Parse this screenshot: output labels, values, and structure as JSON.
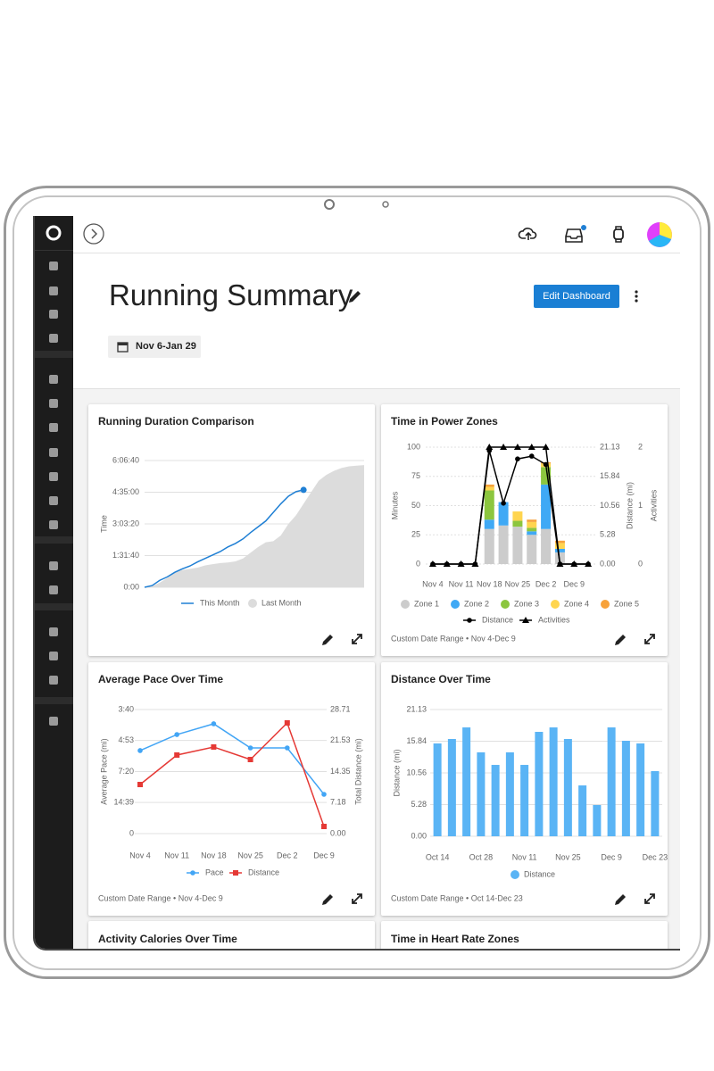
{
  "header": {
    "title": "Running Summary",
    "edit_button": "Edit Dashboard",
    "date_range": "Nov 6-Jan 29"
  },
  "chart_data": [
    {
      "type": "area",
      "title": "Running Duration Comparison",
      "y_label": "Time",
      "categories": [
        null,
        null,
        null,
        null,
        null,
        null,
        null,
        null,
        null,
        null,
        null,
        null,
        null,
        null,
        null,
        null,
        null,
        null,
        null,
        null,
        null,
        null,
        null,
        null,
        null,
        null,
        null,
        null,
        null,
        null
      ],
      "series": [
        {
          "name": "This Month",
          "color": "#1f7fd4",
          "style": "line",
          "marker": "end",
          "values": [
            0,
            300,
            1200,
            1800,
            2600,
            3200,
            3700,
            4400,
            5000,
            5600,
            6200,
            7000,
            7600,
            8400,
            9500,
            10500,
            11500,
            13000,
            14500,
            15800,
            16600,
            16900,
            null,
            null,
            null,
            null,
            null,
            null,
            null,
            null
          ]
        },
        {
          "name": "Last Month",
          "color": "#dcdcdc",
          "style": "area",
          "values": [
            0,
            200,
            800,
            1600,
            2600,
            3000,
            3200,
            3400,
            3800,
            4000,
            4200,
            4300,
            4500,
            5000,
            6000,
            7000,
            7800,
            8000,
            9000,
            11000,
            12500,
            14500,
            16500,
            18500,
            19500,
            20200,
            20700,
            21000,
            21100,
            21200
          ]
        }
      ],
      "ylim": [
        0,
        22000
      ],
      "yticks": [
        {
          "value": 0,
          "label": "0:00"
        },
        {
          "value": 5500,
          "label": "1:31:40"
        },
        {
          "value": 11000,
          "label": "3:03:20"
        },
        {
          "value": 16500,
          "label": "4:35:00"
        },
        {
          "value": 22000,
          "label": "6:06:40"
        }
      ],
      "grid": true
    },
    {
      "type": "stacked-bar-line",
      "title": "Time in Power Zones",
      "y_label": "Minutes",
      "y2_label": "Distance (mi)",
      "y3_label": "Activities",
      "categories": [
        "Nov 4",
        null,
        "Nov 11",
        null,
        "Nov 18",
        null,
        "Nov 25",
        null,
        "Dec 2",
        null,
        "Dec 9",
        null
      ],
      "series": [
        {
          "name": "Zone 1",
          "color": "#cccccc",
          "style": "bar",
          "axis": "y",
          "values": [
            0,
            0,
            0,
            0,
            30,
            33,
            32,
            25,
            30,
            10,
            0,
            0
          ]
        },
        {
          "name": "Zone 2",
          "color": "#3fa9f5",
          "style": "bar",
          "axis": "y",
          "values": [
            0,
            0,
            0,
            0,
            8,
            20,
            0,
            3,
            38,
            3,
            0,
            0
          ]
        },
        {
          "name": "Zone 3",
          "color": "#8cc63f",
          "style": "bar",
          "axis": "y",
          "values": [
            0,
            0,
            0,
            0,
            25,
            0,
            5,
            3,
            15,
            0,
            0,
            0
          ]
        },
        {
          "name": "Zone 4",
          "color": "#ffd54f",
          "style": "bar",
          "axis": "y",
          "values": [
            0,
            0,
            0,
            0,
            3,
            0,
            8,
            5,
            3,
            5,
            0,
            0
          ]
        },
        {
          "name": "Zone 5",
          "color": "#f7a23b",
          "style": "bar",
          "axis": "y",
          "values": [
            0,
            0,
            0,
            0,
            2,
            0,
            0,
            2,
            1,
            2,
            0,
            0
          ]
        },
        {
          "name": "Distance",
          "color": "#000000",
          "style": "line",
          "marker": "circle",
          "axis": "y2",
          "values": [
            0,
            0,
            0,
            0,
            20.5,
            11,
            19,
            19.5,
            18,
            0,
            0,
            0
          ]
        },
        {
          "name": "Activities",
          "color": "#000000",
          "style": "line",
          "marker": "triangle",
          "axis": "y3",
          "values": [
            0,
            0,
            0,
            0,
            2,
            2,
            2,
            2,
            2,
            0,
            0,
            0
          ]
        }
      ],
      "ylim": [
        0,
        100
      ],
      "yticks": [
        0,
        25,
        50,
        75,
        100
      ],
      "y2lim": [
        0,
        21.13
      ],
      "y2ticks": [
        {
          "value": 0,
          "label": "0.00"
        },
        5.28,
        10.56,
        15.84,
        21.13
      ],
      "y3lim": [
        0,
        2
      ],
      "y3ticks": [
        0,
        1,
        2
      ],
      "grid": true,
      "footer": "Custom Date Range  •  Nov 4-Dec 9"
    },
    {
      "type": "line",
      "title": "Average Pace Over Time",
      "y_label": "Average Pace (mi)",
      "y2_label": "Total Distance (mi)",
      "categories": [
        "Nov 4",
        "Nov 11",
        "Nov 18",
        "Nov 25",
        "Dec 2",
        "Dec 9"
      ],
      "series": [
        {
          "name": "Pace",
          "color": "#42a5f5",
          "style": "line",
          "marker": "circle",
          "axis": "y",
          "values": [
            10.95,
            13.06,
            14.48,
            11.3,
            11.3,
            5.18
          ]
        },
        {
          "name": "Distance",
          "color": "#e53935",
          "style": "line",
          "marker": "square",
          "axis": "y2",
          "values": [
            11.36,
            18.18,
            20.04,
            17.14,
            25.61,
            1.65
          ]
        }
      ],
      "ylim": [
        0,
        16.36
      ],
      "yticks": [
        0,
        {
          "value": 4.1,
          "label": "14:39"
        },
        {
          "value": 8.18,
          "label": "7:20"
        },
        {
          "value": 12.29,
          "label": "4:53"
        },
        {
          "value": 16.36,
          "label": "3:40"
        }
      ],
      "y2lim": [
        0,
        28.71
      ],
      "y2ticks": [
        {
          "value": 0,
          "label": "0.00"
        },
        7.18,
        14.35,
        21.53,
        28.71
      ],
      "grid": true,
      "footer": "Custom Date Range  •  Nov 4-Dec 9"
    },
    {
      "type": "bar",
      "title": "Distance Over Time",
      "y_label": "Distance (mi)",
      "categories": [
        "Oct 14",
        null,
        null,
        "Oct 28",
        null,
        null,
        "Nov 11",
        null,
        null,
        "Nov 25",
        null,
        null,
        "Dec 9",
        null,
        null,
        "Dec 23"
      ],
      "series": [
        {
          "name": "Distance",
          "color": "#5ab4f5",
          "style": "bar",
          "axis": "y",
          "values": [
            15.48,
            16.22,
            18.15,
            13.99,
            11.9,
            13.99,
            11.9,
            17.41,
            18.15,
            16.22,
            8.48,
            5.21,
            18.15,
            15.92,
            15.48,
            10.86
          ]
        }
      ],
      "ylim": [
        0,
        21.13
      ],
      "yticks": [
        {
          "value": 0,
          "label": "0.00"
        },
        5.28,
        10.56,
        15.84,
        21.13
      ],
      "grid": true,
      "footer": "Custom Date Range  •  Oct 14-Dec 23"
    }
  ],
  "cards": [
    {
      "title": "Activity Calories Over Time"
    },
    {
      "title": "Time in Heart Rate Zones"
    }
  ]
}
